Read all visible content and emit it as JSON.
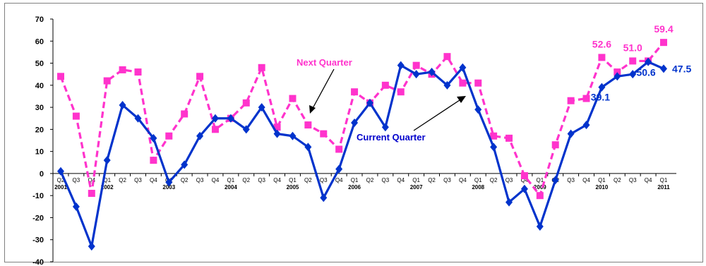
{
  "chart_data": {
    "type": "line",
    "ylim": [
      -40,
      70
    ],
    "y_ticks": [
      70,
      60,
      50,
      40,
      30,
      20,
      10,
      0,
      -10,
      -20,
      -30,
      -40
    ],
    "x_quarter_labels": [
      "Q2",
      "Q3",
      "Q4",
      "Q1",
      "Q2",
      "Q3",
      "Q4",
      "Q1",
      "Q2",
      "Q3",
      "Q4",
      "Q1",
      "Q2",
      "Q3",
      "Q4",
      "Q1",
      "Q2",
      "Q3",
      "Q4",
      "Q1",
      "Q2",
      "Q3",
      "Q4",
      "Q1",
      "Q2",
      "Q3",
      "Q4",
      "Q1",
      "Q2",
      "Q3",
      "Q4",
      "Q1",
      "Q2",
      "Q3",
      "Q4",
      "Q1",
      "Q2",
      "Q3",
      "Q4",
      "Q1"
    ],
    "x_year_labels": [
      {
        "label": "2001",
        "index": 0
      },
      {
        "label": "2002",
        "index": 3
      },
      {
        "label": "2003",
        "index": 7
      },
      {
        "label": "2004",
        "index": 11
      },
      {
        "label": "2005",
        "index": 15
      },
      {
        "label": "2006",
        "index": 19
      },
      {
        "label": "2007",
        "index": 23
      },
      {
        "label": "2008",
        "index": 27
      },
      {
        "label": "2009",
        "index": 31
      },
      {
        "label": "2010",
        "index": 35
      },
      {
        "label": "2011",
        "index": 39
      }
    ],
    "grid": false,
    "series": [
      {
        "name": "Current Quarter",
        "color": "#0033cc",
        "style": "solid",
        "marker": "diamond",
        "values": [
          1,
          -15,
          -33,
          6,
          31,
          25,
          16,
          -4,
          4,
          17,
          25,
          25,
          20,
          30,
          18,
          17,
          12,
          -11,
          2,
          23,
          32,
          21,
          49,
          45,
          46,
          40,
          48,
          29,
          12,
          -13,
          -7,
          -24,
          -3,
          18,
          22,
          39.1,
          44,
          45,
          50.6,
          47.5
        ]
      },
      {
        "name": "Next Quarter",
        "color": "#ff33cc",
        "style": "dashed",
        "marker": "square",
        "values": [
          44,
          26,
          -9,
          42,
          47,
          46,
          6,
          17,
          27,
          44,
          20,
          25,
          32,
          48,
          21,
          34,
          22,
          18,
          11,
          37,
          32,
          40,
          37,
          49,
          45,
          53,
          41,
          41,
          17,
          16,
          -1,
          -10,
          13,
          33,
          34,
          52.6,
          46,
          51.0,
          51,
          59.4
        ]
      }
    ],
    "data_labels": [
      {
        "series": 1,
        "index": 35,
        "text": "52.6"
      },
      {
        "series": 1,
        "index": 37,
        "text": "51.0"
      },
      {
        "series": 1,
        "index": 39,
        "text": "59.4"
      },
      {
        "series": 0,
        "index": 35,
        "text": "39.1"
      },
      {
        "series": 0,
        "index": 38,
        "text": "50.6"
      },
      {
        "series": 0,
        "index": 39,
        "text": "47.5"
      }
    ],
    "annotations": {
      "next_quarter": "Next Quarter",
      "current_quarter": "Current Quarter"
    }
  }
}
